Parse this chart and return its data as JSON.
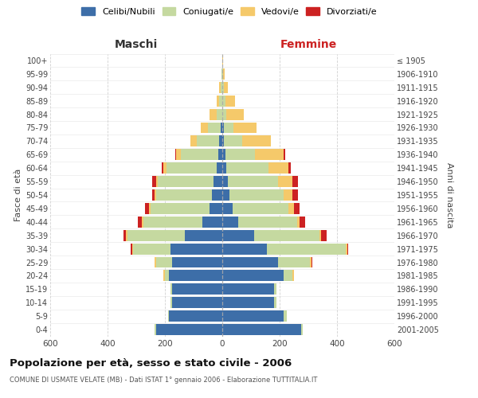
{
  "age_groups": [
    "0-4",
    "5-9",
    "10-14",
    "15-19",
    "20-24",
    "25-29",
    "30-34",
    "35-39",
    "40-44",
    "45-49",
    "50-54",
    "55-59",
    "60-64",
    "65-69",
    "70-74",
    "75-79",
    "80-84",
    "85-89",
    "90-94",
    "95-99",
    "100+"
  ],
  "birth_years": [
    "2001-2005",
    "1996-2000",
    "1991-1995",
    "1986-1990",
    "1981-1985",
    "1976-1980",
    "1971-1975",
    "1966-1970",
    "1961-1965",
    "1956-1960",
    "1951-1955",
    "1946-1950",
    "1941-1945",
    "1936-1940",
    "1931-1935",
    "1926-1930",
    "1921-1925",
    "1916-1920",
    "1911-1915",
    "1906-1910",
    "≤ 1905"
  ],
  "males": {
    "celibi": [
      230,
      185,
      175,
      175,
      185,
      175,
      180,
      130,
      70,
      45,
      35,
      30,
      20,
      15,
      10,
      5,
      0,
      0,
      0,
      0,
      0
    ],
    "coniugati": [
      5,
      5,
      5,
      5,
      15,
      55,
      130,
      200,
      205,
      205,
      195,
      195,
      175,
      130,
      80,
      45,
      20,
      10,
      5,
      2,
      0
    ],
    "vedovi": [
      0,
      0,
      0,
      0,
      5,
      5,
      5,
      5,
      5,
      5,
      5,
      5,
      10,
      15,
      20,
      25,
      25,
      10,
      5,
      1,
      0
    ],
    "divorziati": [
      0,
      0,
      0,
      0,
      0,
      0,
      5,
      10,
      15,
      15,
      10,
      15,
      5,
      5,
      0,
      0,
      0,
      0,
      0,
      0,
      0
    ]
  },
  "females": {
    "nubili": [
      275,
      215,
      180,
      180,
      215,
      195,
      155,
      110,
      55,
      35,
      25,
      20,
      15,
      10,
      5,
      5,
      0,
      0,
      0,
      0,
      0
    ],
    "coniugate": [
      5,
      10,
      10,
      10,
      30,
      110,
      275,
      230,
      205,
      195,
      190,
      175,
      145,
      105,
      65,
      35,
      15,
      10,
      5,
      2,
      0
    ],
    "vedove": [
      0,
      0,
      0,
      0,
      5,
      5,
      5,
      5,
      10,
      20,
      30,
      50,
      70,
      100,
      100,
      80,
      60,
      35,
      15,
      5,
      2
    ],
    "divorziate": [
      0,
      0,
      0,
      0,
      0,
      5,
      5,
      20,
      20,
      20,
      20,
      20,
      10,
      5,
      0,
      0,
      0,
      0,
      0,
      0,
      0
    ]
  },
  "colors": {
    "celibi_nubili": "#3d6ea8",
    "coniugati": "#c5d9a0",
    "vedovi": "#f5c96a",
    "divorziati": "#cc2222"
  },
  "title": "Popolazione per età, sesso e stato civile - 2006",
  "subtitle": "COMUNE DI USMATE VELATE (MB) - Dati ISTAT 1° gennaio 2006 - Elaborazione TUTTITALIA.IT",
  "xlabel_left": "Maschi",
  "xlabel_right": "Femmine",
  "ylabel_left": "Fasce di età",
  "ylabel_right": "Anni di nascita",
  "xlim": 600,
  "background_color": "#ffffff",
  "grid_color": "#cccccc"
}
